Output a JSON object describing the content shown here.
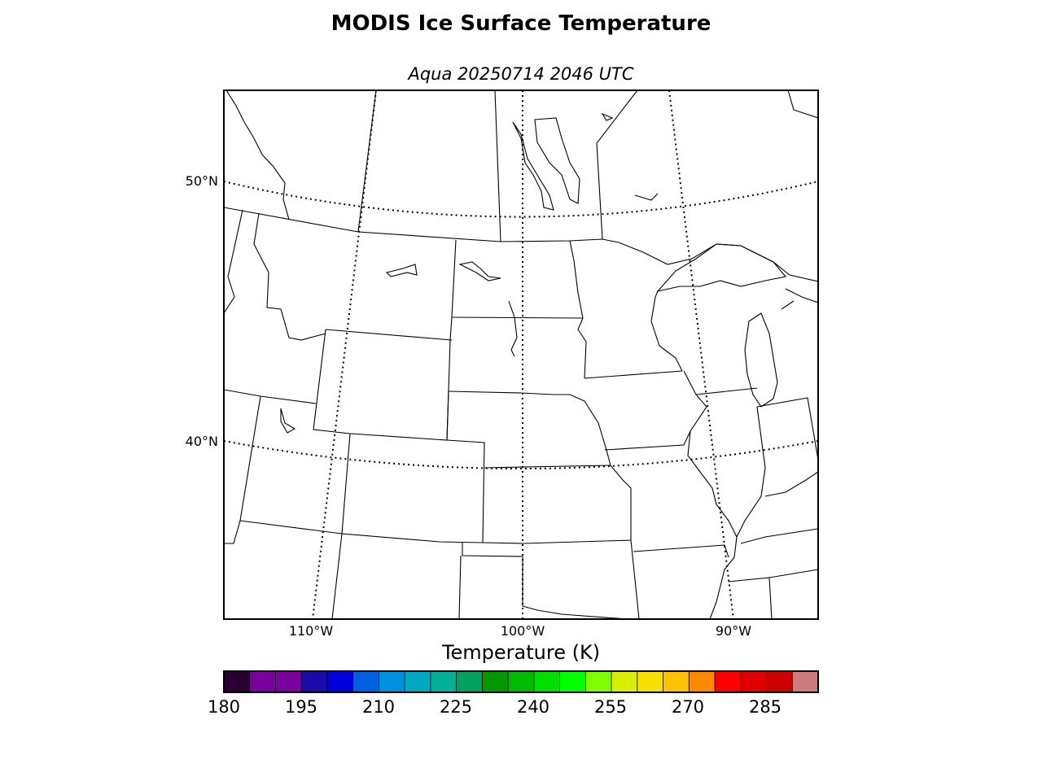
{
  "title": "MODIS Ice Surface Temperature",
  "subtitle": "Aqua 20250714 2046 UTC",
  "map": {
    "projection": "lambert-conformal",
    "region": "north-central United States and southern Canada",
    "latitude_labels": [
      "50°N",
      "40°N"
    ],
    "longitude_labels": [
      "110°W",
      "100°W",
      "90°W"
    ],
    "graticule_style": "dotted",
    "data_overlay": "none visible"
  },
  "colorbar": {
    "label": "Temperature (K)",
    "ticks": [
      "180",
      "195",
      "210",
      "225",
      "240",
      "255",
      "270",
      "285"
    ],
    "colors": [
      "#2a0033",
      "#7a00a0",
      "#7a00a0",
      "#1a0aa8",
      "#0000dd",
      "#0060e0",
      "#0090e0",
      "#00a8c0",
      "#00b098",
      "#00a060",
      "#009900",
      "#00bb00",
      "#00dd00",
      "#00ff00",
      "#80ff00",
      "#d8f000",
      "#f5e000",
      "#ffc000",
      "#ff8800",
      "#ff0000",
      "#e00000",
      "#cc0000",
      "#cc7a7a"
    ]
  }
}
